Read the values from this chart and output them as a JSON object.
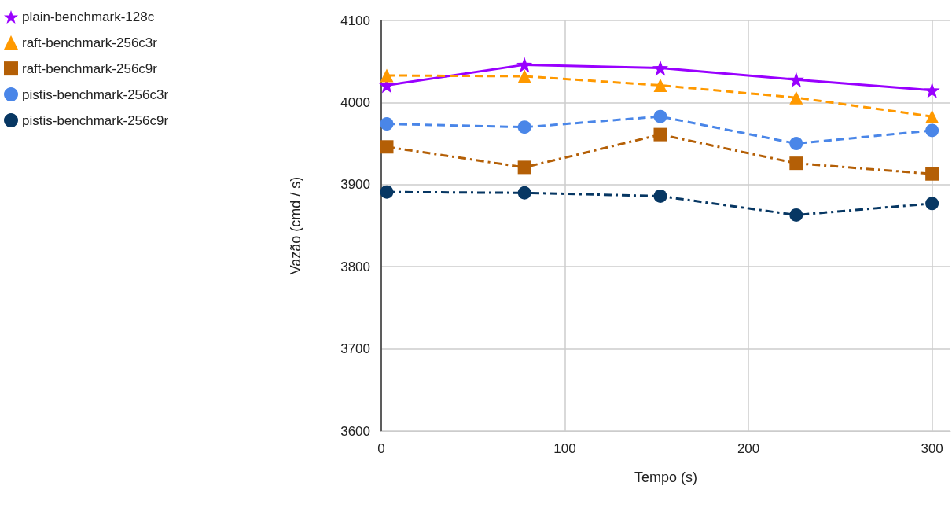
{
  "chart_data": {
    "type": "line",
    "xlabel": "Tempo (s)",
    "ylabel": "Vazão (cmd / s)",
    "x": [
      3,
      78,
      152,
      226,
      300
    ],
    "xlim": [
      0,
      310
    ],
    "xticks": [
      0,
      100,
      200,
      300
    ],
    "ylim": [
      3600,
      4100
    ],
    "yticks": [
      3600,
      3700,
      3800,
      3900,
      4000,
      4100
    ],
    "grid": true,
    "legend": "left",
    "series": [
      {
        "name": "plain-benchmark-128c",
        "color": "#9900ff",
        "marker": "star",
        "line_style": "solid",
        "values": [
          4021,
          4046,
          4042,
          4028,
          4015
        ]
      },
      {
        "name": "raft-benchmark-256c3r",
        "color": "#ff9900",
        "marker": "triangle",
        "line_style": "dashed",
        "values": [
          4033,
          4032,
          4021,
          4006,
          3983
        ]
      },
      {
        "name": "raft-benchmark-256c9r",
        "color": "#b45f06",
        "marker": "square",
        "line_style": "dashdot",
        "values": [
          3946,
          3921,
          3961,
          3926,
          3913
        ]
      },
      {
        "name": "pistis-benchmark-256c3r",
        "color": "#4a86e8",
        "marker": "circle",
        "line_style": "dashed",
        "values": [
          3974,
          3970,
          3983,
          3950,
          3966
        ]
      },
      {
        "name": "pistis-benchmark-256c9r",
        "color": "#073763",
        "marker": "circle",
        "line_style": "dashdot",
        "values": [
          3891,
          3890,
          3886,
          3863,
          3877
        ]
      }
    ]
  }
}
